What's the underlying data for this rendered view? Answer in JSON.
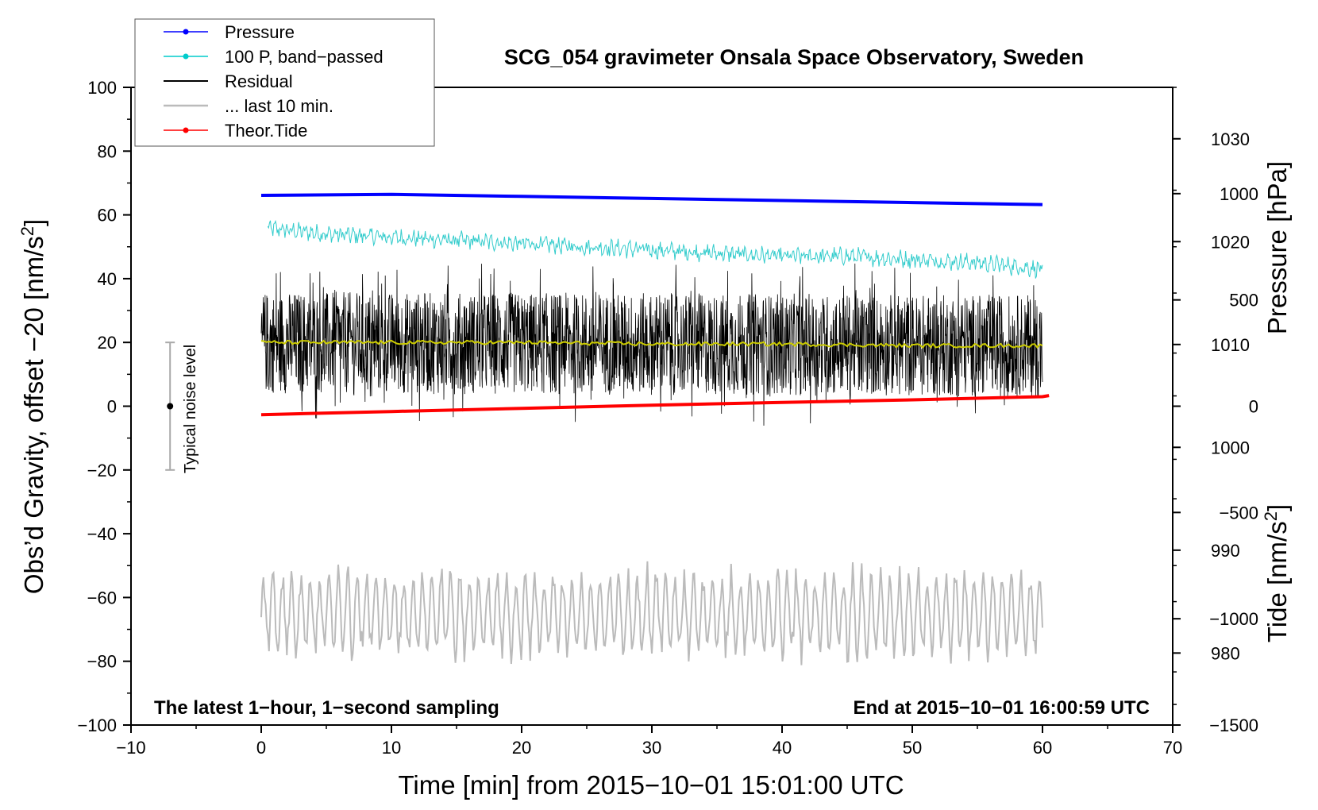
{
  "chart_data": {
    "type": "line",
    "title": "SCG_054 gravimeter Onsala Space Observatory, Sweden",
    "xlabel": "Time [min] from 2015−10−01 15:01:00 UTC",
    "ylabel_left": "Obs’d Gravity, offset −20 [nm/s²]",
    "ylabel_left_main": "Obs’d Gravity, offset −20 [nm/s",
    "ylabel_left_sup": "2",
    "ylabel_left_end": "]",
    "ylabel_right_pressure": "Pressure [hPa]",
    "ylabel_right_tide_main": "Tide [nm/s",
    "ylabel_right_tide_sup": "2",
    "ylabel_right_tide_end": "]",
    "xlim": [
      -10,
      70
    ],
    "ylim_left": [
      -100,
      100
    ],
    "ylim_right_pressure": [
      973,
      1035
    ],
    "ylim_right_tide": [
      -1500,
      1500
    ],
    "xticks": [
      -10,
      0,
      10,
      20,
      30,
      40,
      50,
      60,
      70
    ],
    "xtick_labels": [
      "−10",
      "0",
      "10",
      "20",
      "30",
      "40",
      "50",
      "60",
      "70"
    ],
    "yticks_left": [
      -100,
      -80,
      -60,
      -40,
      -20,
      0,
      20,
      40,
      60,
      80,
      100
    ],
    "ytick_labels_left": [
      "−100",
      "−80",
      "−60",
      "−40",
      "−20",
      "0",
      "20",
      "40",
      "60",
      "80",
      "100"
    ],
    "yticks_pressure": [
      980,
      990,
      1000,
      1010,
      1020,
      1030
    ],
    "ytick_labels_pressure": [
      "980",
      "990",
      "1000",
      "1010",
      "1020",
      "1030"
    ],
    "yticks_tide": [
      -1500,
      -1000,
      -500,
      0,
      500,
      1000
    ],
    "ytick_labels_tide": [
      "−1500",
      "−1000",
      "−500",
      "0",
      "500",
      "1000"
    ],
    "left_text": "The latest 1−hour, 1−second sampling",
    "right_text": "End at 2015−10−01 16:00:59 UTC",
    "noise_label": "Typical noise level",
    "noise_bar": {
      "x": -7,
      "center": 0,
      "low": -20,
      "high": 20
    },
    "legend": [
      {
        "label": "Pressure",
        "color": "#0000ff",
        "marker": true
      },
      {
        "label": "100 P, band−passed",
        "color": "#00cccc",
        "marker": true
      },
      {
        "label": "Residual",
        "color": "#000000",
        "marker": false
      },
      {
        "label": "... last 10 min.",
        "color": "#bbbbbb",
        "marker": false
      },
      {
        "label": "Theor.Tide",
        "color": "#ff0000",
        "marker": true
      }
    ],
    "series": [
      {
        "name": "Pressure",
        "axis": "pressure",
        "color": "#0000ff",
        "x": [
          0,
          10,
          20,
          30,
          40,
          50,
          60
        ],
        "y": [
          1024.5,
          1024.6,
          1024.4,
          1024.2,
          1024.0,
          1023.8,
          1023.6
        ]
      },
      {
        "name": "100 P, band−passed",
        "axis": "left",
        "color": "#33cccc",
        "x": [
          0,
          5,
          10,
          15,
          20,
          25,
          30,
          35,
          40,
          45,
          50,
          55,
          60
        ],
        "y": [
          56,
          54,
          53,
          52,
          51,
          50,
          49,
          48,
          47,
          47,
          46,
          45,
          43
        ]
      },
      {
        "name": "Residual",
        "axis": "left",
        "color": "#000000",
        "x": [
          0,
          60
        ],
        "y_center": [
          20,
          19
        ],
        "amplitude": 16
      },
      {
        "name": "Residual smoothed",
        "axis": "left",
        "color": "#cccc00",
        "x": [
          0,
          10,
          20,
          30,
          40,
          50,
          60
        ],
        "y": [
          20,
          20,
          20,
          19.5,
          19.5,
          19,
          19
        ]
      },
      {
        "name": "... last 10 min.",
        "axis": "left",
        "color": "#bbbbbb",
        "x": [
          0,
          60
        ],
        "y_center": [
          -65,
          -65
        ],
        "amplitude": 12
      },
      {
        "name": "Theor.Tide",
        "axis": "tide",
        "color": "#ff0000",
        "x": [
          0,
          10,
          20,
          30,
          40,
          50,
          60,
          60.5
        ],
        "y": [
          -40,
          -25,
          -10,
          5,
          18,
          30,
          45,
          50
        ]
      }
    ]
  }
}
